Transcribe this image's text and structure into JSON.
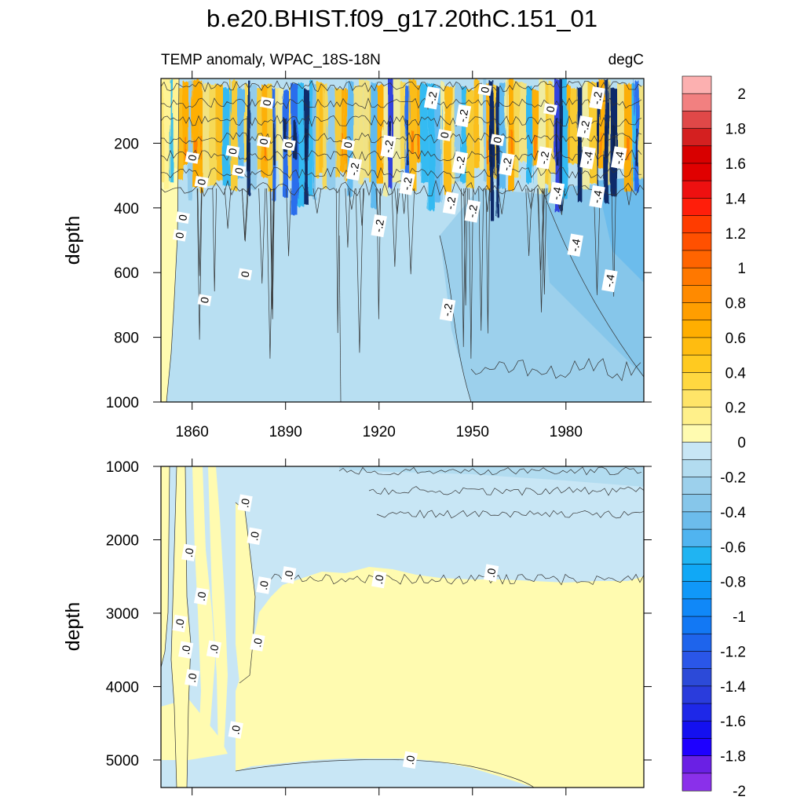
{
  "chart_data": [
    {
      "type": "heatmap",
      "title": "b.e20.BHIST.f09_g17.20thC.151_01",
      "left_string": "TEMP anomaly, WPAC_18S-18N",
      "right_string": "degC",
      "ylabel": "depth",
      "xlabel": "",
      "x_ticks": [
        1860,
        1890,
        1920,
        1950,
        1980
      ],
      "x_range": [
        1850,
        2005
      ],
      "y_ticks": [
        200,
        400,
        600,
        800,
        1000
      ],
      "y_range": [
        0,
        1000
      ],
      "contour_labels": [
        {
          "text": "0",
          "x": 1857,
          "y": 430
        },
        {
          "text": "0",
          "x": 1856,
          "y": 485
        },
        {
          "text": "0",
          "x": 1860,
          "y": 245
        },
        {
          "text": "0",
          "x": 1863,
          "y": 320
        },
        {
          "text": "0",
          "x": 1864,
          "y": 685
        },
        {
          "text": "0",
          "x": 1873,
          "y": 225
        },
        {
          "text": "0",
          "x": 1875,
          "y": 285
        },
        {
          "text": "0",
          "x": 1877,
          "y": 605
        },
        {
          "text": "0",
          "x": 1883,
          "y": 195
        },
        {
          "text": "0",
          "x": 1884,
          "y": 75
        },
        {
          "text": "0",
          "x": 1891,
          "y": 205
        },
        {
          "text": "0",
          "x": 1910,
          "y": 205
        },
        {
          "text": "-.2",
          "x": 1912,
          "y": 280
        },
        {
          "text": "-.2",
          "x": 1920,
          "y": 455
        },
        {
          "text": "-.2",
          "x": 1923,
          "y": 210
        },
        {
          "text": "-.2",
          "x": 1929,
          "y": 325
        },
        {
          "text": "-.2",
          "x": 1937,
          "y": 60
        },
        {
          "text": "-.2",
          "x": 1943,
          "y": 385
        },
        {
          "text": "0",
          "x": 1941,
          "y": 175
        },
        {
          "text": "-.2",
          "x": 1947,
          "y": 115
        },
        {
          "text": "-.2",
          "x": 1946,
          "y": 260
        },
        {
          "text": "-.2",
          "x": 1950,
          "y": 410
        },
        {
          "text": "0",
          "x": 1954,
          "y": 35
        },
        {
          "text": "0",
          "x": 1958,
          "y": 190
        },
        {
          "text": "-.2",
          "x": 1961,
          "y": 265
        },
        {
          "text": "-.2",
          "x": 1942,
          "y": 715
        },
        {
          "text": "0",
          "x": 1975,
          "y": 95
        },
        {
          "text": "-.2",
          "x": 1973,
          "y": 245
        },
        {
          "text": "-.4",
          "x": 1977,
          "y": 355
        },
        {
          "text": "-.2",
          "x": 1986,
          "y": 150
        },
        {
          "text": "-.4",
          "x": 1987,
          "y": 245
        },
        {
          "text": "-.2",
          "x": 1990,
          "y": 60
        },
        {
          "text": "-.4",
          "x": 1990,
          "y": 365
        },
        {
          "text": "-.4",
          "x": 1997,
          "y": 245
        },
        {
          "text": "-.4",
          "x": 1983,
          "y": 515
        },
        {
          "text": "-.4",
          "x": 1994,
          "y": 625
        }
      ]
    },
    {
      "type": "heatmap",
      "ylabel": "depth",
      "y_ticks": [
        1000,
        2000,
        3000,
        4000,
        5000
      ],
      "y_range": [
        1000,
        5375
      ],
      "x_range": [
        1850,
        2005
      ],
      "contour_labels": [
        {
          "text": ".0",
          "x": 1877,
          "y": 1500
        },
        {
          "text": ".0",
          "x": 1880,
          "y": 1950
        },
        {
          "text": ".0",
          "x": 1859,
          "y": 2175
        },
        {
          "text": ".0",
          "x": 1863,
          "y": 2770
        },
        {
          "text": ".0",
          "x": 1856,
          "y": 3140
        },
        {
          "text": ".0",
          "x": 1858,
          "y": 3500
        },
        {
          "text": ".0",
          "x": 1867,
          "y": 3490
        },
        {
          "text": ".0",
          "x": 1860,
          "y": 3880
        },
        {
          "text": ".0",
          "x": 1881,
          "y": 3400
        },
        {
          "text": ".0",
          "x": 1883,
          "y": 2620
        },
        {
          "text": ".0",
          "x": 1891,
          "y": 2480
        },
        {
          "text": ".0",
          "x": 1920,
          "y": 2540
        },
        {
          "text": ".0",
          "x": 1956,
          "y": 2450
        },
        {
          "text": ".0",
          "x": 1874,
          "y": 4590
        },
        {
          "text": ".0",
          "x": 1930,
          "y": 5000
        }
      ]
    },
    {
      "type": "colorbar",
      "labels": [
        "2",
        "1.8",
        "1.6",
        "1.4",
        "1.2",
        "1",
        "0.8",
        "0.6",
        "0.4",
        "0.2",
        "0",
        "-0.2",
        "-0.4",
        "-0.6",
        "-0.8",
        "-1",
        "-1.2",
        "-1.4",
        "-1.6",
        "-1.8",
        "-2"
      ],
      "colors": [
        "#fcb0b0",
        "#f28080",
        "#e04848",
        "#d42020",
        "#d80000",
        "#e00000",
        "#ee1010",
        "#ff1e0a",
        "#ff3c00",
        "#ff5000",
        "#ff6400",
        "#ff7800",
        "#ff8a00",
        "#ff9e00",
        "#ffae00",
        "#ffbc10",
        "#ffca20",
        "#ffd840",
        "#ffe468",
        "#fff08a",
        "#fffbb0",
        "#c8e6f5",
        "#b2dcf0",
        "#9cd0ec",
        "#86c6ea",
        "#6cbcec",
        "#50b4f0",
        "#20b4f2",
        "#10a8f6",
        "#1098f8",
        "#1088f8",
        "#1278f4",
        "#1e64ec",
        "#2a56e8",
        "#2c4ad8",
        "#2a3cdc",
        "#1e28e8",
        "#1410f0",
        "#1e00ff",
        "#6a20e4",
        "#8a30ea"
      ]
    }
  ]
}
